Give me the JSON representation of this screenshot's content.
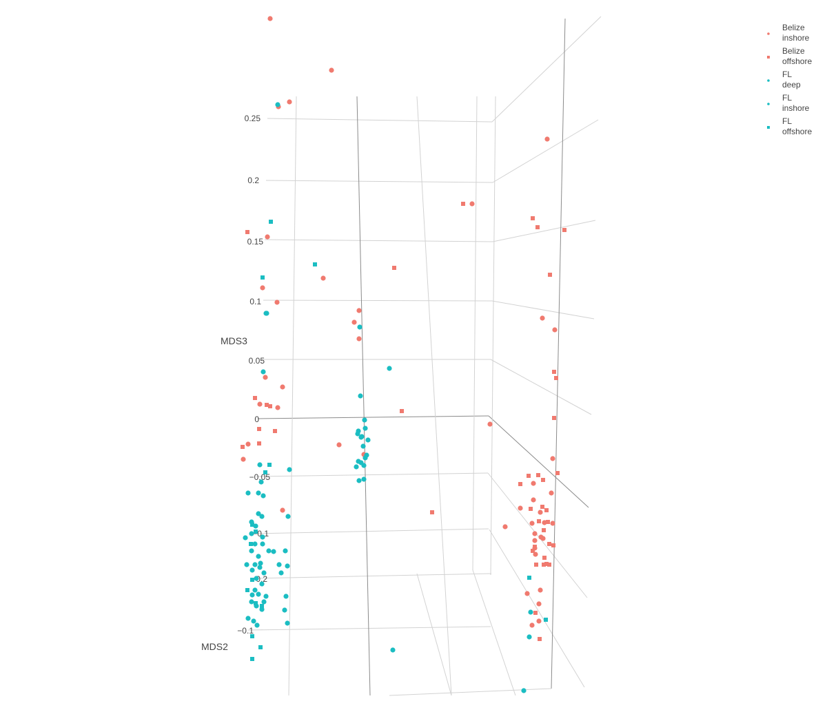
{
  "chart_data": {
    "type": "scatter",
    "projection": "3d",
    "axes": {
      "z": {
        "title": "MDS3",
        "ticks": [
          "0.25",
          "0.2",
          "0.15",
          "0.1",
          "0.05",
          "0",
          "−0.05",
          "−0.1"
        ]
      },
      "y": {
        "title": "MDS2",
        "ticks": [
          "−0.2",
          "−0.1"
        ]
      }
    },
    "colors": {
      "belize": "#f07a6f",
      "fl": "#1bbdc2",
      "grid": "#d2d2d2",
      "grid_dark": "#8a8a8a"
    },
    "series": [
      {
        "group": "Belize",
        "name_lines": [
          "Belize",
          "inshore"
        ],
        "color": "#f07a6f",
        "marker": "circle",
        "points": [
          [
            392,
            27
          ],
          [
            481,
            102
          ],
          [
            420,
            148
          ],
          [
            404,
            155
          ],
          [
            794,
            202
          ],
          [
            685,
            296
          ],
          [
            388,
            344
          ],
          [
            469,
            404
          ],
          [
            381,
            418
          ],
          [
            402,
            439
          ],
          [
            787,
            462
          ],
          [
            805,
            479
          ],
          [
            521,
            451
          ],
          [
            514,
            468
          ],
          [
            521,
            492
          ],
          [
            385,
            548
          ],
          [
            410,
            562
          ],
          [
            377,
            587
          ],
          [
            403,
            592
          ],
          [
            360,
            645
          ],
          [
            353,
            667
          ],
          [
            492,
            646
          ],
          [
            528,
            660
          ],
          [
            530,
            664
          ],
          [
            711,
            616
          ],
          [
            802,
            666
          ],
          [
            774,
            702
          ],
          [
            800,
            716
          ],
          [
            774,
            726
          ],
          [
            755,
            738
          ],
          [
            784,
            744
          ],
          [
            410,
            741
          ],
          [
            733,
            765
          ],
          [
            772,
            760
          ],
          [
            790,
            759
          ],
          [
            802,
            760
          ],
          [
            776,
            775
          ],
          [
            785,
            780
          ],
          [
            788,
            782
          ],
          [
            776,
            785
          ],
          [
            776,
            796
          ],
          [
            777,
            805
          ],
          [
            784,
            857
          ],
          [
            765,
            862
          ],
          [
            782,
            877
          ],
          [
            782,
            902
          ],
          [
            772,
            908
          ]
        ]
      },
      {
        "group": "Belize",
        "name_lines": [
          "Belize",
          "offshore"
        ],
        "color": "#f07a6f",
        "marker": "square",
        "points": [
          [
            359,
            337
          ],
          [
            672,
            296
          ],
          [
            773,
            317
          ],
          [
            780,
            330
          ],
          [
            819,
            334
          ],
          [
            572,
            389
          ],
          [
            798,
            399
          ],
          [
            804,
            540
          ],
          [
            807,
            549
          ],
          [
            370,
            578
          ],
          [
            387,
            588
          ],
          [
            392,
            590
          ],
          [
            583,
            597
          ],
          [
            804,
            607
          ],
          [
            376,
            623
          ],
          [
            399,
            626
          ],
          [
            352,
            649
          ],
          [
            376,
            644
          ],
          [
            767,
            691
          ],
          [
            781,
            690
          ],
          [
            788,
            697
          ],
          [
            809,
            687
          ],
          [
            755,
            703
          ],
          [
            627,
            744
          ],
          [
            770,
            739
          ],
          [
            787,
            736
          ],
          [
            793,
            741
          ],
          [
            782,
            757
          ],
          [
            795,
            758
          ],
          [
            789,
            770
          ],
          [
            797,
            790
          ],
          [
            803,
            792
          ],
          [
            776,
            794
          ],
          [
            773,
            800
          ],
          [
            790,
            810
          ],
          [
            789,
            820
          ],
          [
            793,
            819
          ],
          [
            797,
            820
          ],
          [
            778,
            820
          ],
          [
            777,
            890
          ],
          [
            783,
            928
          ]
        ]
      },
      {
        "group": "FL",
        "name_lines": [
          "FL",
          "deep"
        ],
        "color": "#1bbdc2",
        "marker": "circle",
        "points": [
          [
            403,
            152
          ],
          [
            386,
            455
          ],
          [
            522,
            475
          ],
          [
            565,
            535
          ],
          [
            523,
            575
          ],
          [
            529,
            610
          ],
          [
            530,
            622
          ],
          [
            519,
            630
          ],
          [
            524,
            635
          ],
          [
            534,
            639
          ],
          [
            525,
            634
          ],
          [
            520,
            626
          ],
          [
            527,
            648
          ],
          [
            532,
            661
          ],
          [
            530,
            665
          ],
          [
            524,
            672
          ],
          [
            520,
            670
          ],
          [
            528,
            676
          ],
          [
            517,
            678
          ],
          [
            528,
            696
          ],
          [
            521,
            698
          ],
          [
            570,
            944
          ],
          [
            760,
            1003
          ]
        ]
      },
      {
        "group": "FL",
        "name_lines": [
          "FL",
          "inshore"
        ],
        "color": "#1bbdc2",
        "marker": "circle",
        "points": [
          [
            387,
            455
          ],
          [
            382,
            540
          ],
          [
            377,
            675
          ],
          [
            420,
            682
          ],
          [
            379,
            700
          ],
          [
            360,
            716
          ],
          [
            375,
            716
          ],
          [
            382,
            720
          ],
          [
            418,
            750
          ],
          [
            375,
            746
          ],
          [
            380,
            750
          ],
          [
            365,
            758
          ],
          [
            371,
            764
          ],
          [
            365,
            775
          ],
          [
            356,
            781
          ],
          [
            381,
            780
          ],
          [
            370,
            790
          ],
          [
            381,
            790
          ],
          [
            390,
            800
          ],
          [
            365,
            800
          ],
          [
            397,
            801
          ],
          [
            414,
            800
          ],
          [
            375,
            808
          ],
          [
            378,
            818
          ],
          [
            370,
            820
          ],
          [
            377,
            824
          ],
          [
            358,
            820
          ],
          [
            405,
            820
          ],
          [
            417,
            822
          ],
          [
            366,
            828
          ],
          [
            383,
            832
          ],
          [
            372,
            840
          ],
          [
            408,
            832
          ],
          [
            380,
            848
          ],
          [
            370,
            857
          ],
          [
            366,
            864
          ],
          [
            375,
            863
          ],
          [
            386,
            866
          ],
          [
            415,
            866
          ],
          [
            365,
            874
          ],
          [
            383,
            874
          ],
          [
            372,
            880
          ],
          [
            380,
            885
          ],
          [
            413,
            886
          ],
          [
            360,
            898
          ],
          [
            373,
            908
          ],
          [
            417,
            905
          ],
          [
            368,
            902
          ],
          [
            770,
            889
          ],
          [
            768,
            925
          ]
        ]
      },
      {
        "group": "FL",
        "name_lines": [
          "FL",
          "offshore"
        ],
        "color": "#1bbdc2",
        "marker": "square",
        "points": [
          [
            393,
            322
          ],
          [
            457,
            384
          ],
          [
            381,
            403
          ],
          [
            391,
            675
          ],
          [
            385,
            686
          ],
          [
            366,
            762
          ],
          [
            371,
            772
          ],
          [
            364,
            790
          ],
          [
            366,
            842
          ],
          [
            359,
            857
          ],
          [
            371,
            876
          ],
          [
            380,
            880
          ],
          [
            366,
            924
          ],
          [
            378,
            940
          ],
          [
            366,
            957
          ],
          [
            768,
            839
          ],
          [
            792,
            900
          ]
        ]
      }
    ]
  }
}
